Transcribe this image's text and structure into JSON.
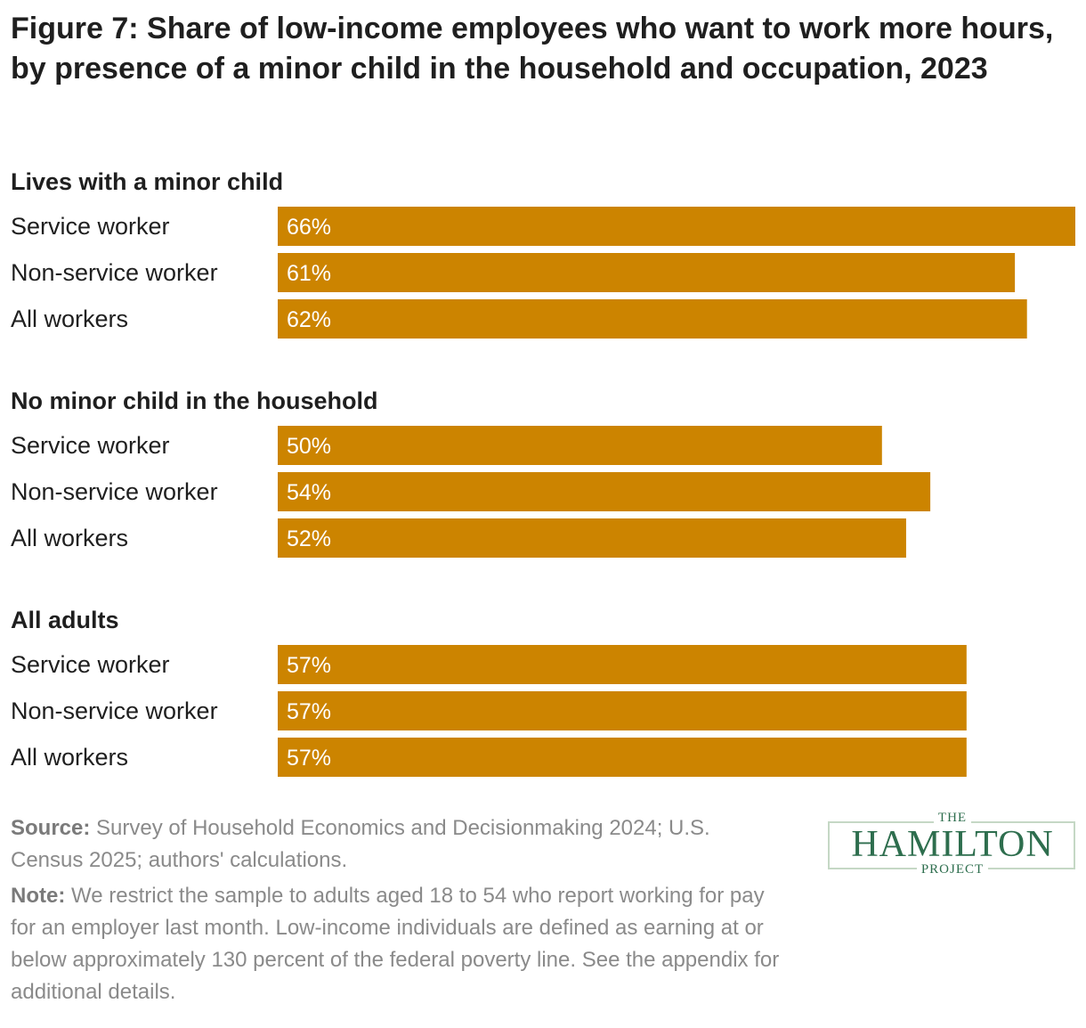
{
  "chart_data": {
    "type": "bar",
    "orientation": "horizontal",
    "title": "Figure 7: Share of low-income employees who want to work more hours, by presence of a minor child in the household and occupation, 2023",
    "xlim": [
      0,
      66
    ],
    "bar_color": "#cc8400",
    "groups": [
      {
        "name": "Lives with a minor child",
        "categories": [
          "Service worker",
          "Non-service worker",
          "All workers"
        ],
        "values": [
          66,
          61,
          62
        ],
        "labels": [
          "66%",
          "61%",
          "62%"
        ]
      },
      {
        "name": "No minor child in the household",
        "categories": [
          "Service worker",
          "Non-service worker",
          "All workers"
        ],
        "values": [
          50,
          54,
          52
        ],
        "labels": [
          "50%",
          "54%",
          "52%"
        ]
      },
      {
        "name": "All adults",
        "categories": [
          "Service worker",
          "Non-service worker",
          "All workers"
        ],
        "values": [
          57,
          57,
          57
        ],
        "labels": [
          "57%",
          "57%",
          "57%"
        ]
      }
    ]
  },
  "source": {
    "label": "Source:",
    "text": "Survey of Household Economics and Decisionmaking 2024; U.S. Census 2025; authors' calculations."
  },
  "note": {
    "label": "Note:",
    "text": "We restrict the sample to adults aged 18 to 54 who report working for pay for an employer last month. Low-income individuals are defined as earning at or below approximately 130 percent of the federal poverty line. See the appendix for additional details."
  },
  "logo": {
    "the": "THE",
    "main": "HAMILTON",
    "project": "PROJECT",
    "color": "#2e6e4e"
  }
}
